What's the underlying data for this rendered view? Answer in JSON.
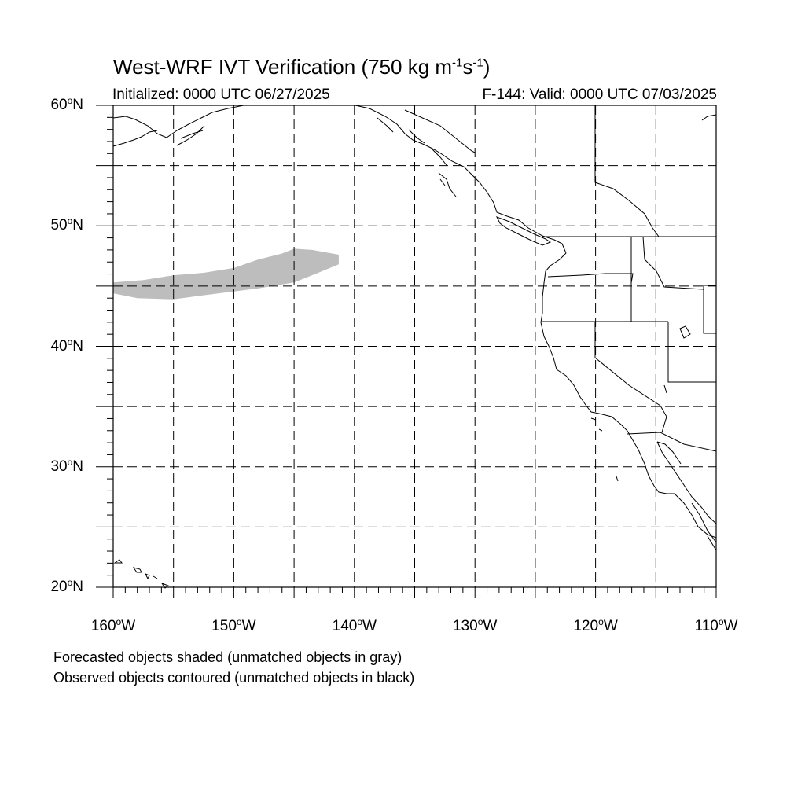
{
  "title": {
    "main": "West-WRF IVT Verification (750 kg m",
    "exp1": "-1",
    "mid": "s",
    "exp2": "-1",
    "end": ")"
  },
  "subtitle": {
    "initialized": "Initialized: 0000 UTC 06/27/2025",
    "valid": "F-144: Valid: 0000 UTC 07/03/2025"
  },
  "map": {
    "lon_range": [
      -160,
      -110
    ],
    "lat_range": [
      20,
      60
    ],
    "grid_lines": "dashed",
    "lat_labels": [
      {
        "value": 60,
        "text": "60",
        "hemi": "N"
      },
      {
        "value": 50,
        "text": "50",
        "hemi": "N"
      },
      {
        "value": 40,
        "text": "40",
        "hemi": "N"
      },
      {
        "value": 30,
        "text": "30",
        "hemi": "N"
      },
      {
        "value": 20,
        "text": "20",
        "hemi": "N"
      }
    ],
    "lon_labels": [
      {
        "value": -160,
        "text": "160",
        "hemi": "W"
      },
      {
        "value": -150,
        "text": "150",
        "hemi": "W"
      },
      {
        "value": -140,
        "text": "140",
        "hemi": "W"
      },
      {
        "value": -130,
        "text": "130",
        "hemi": "W"
      },
      {
        "value": -120,
        "text": "120",
        "hemi": "W"
      },
      {
        "value": -110,
        "text": "110",
        "hemi": "W"
      }
    ],
    "forecast_object": {
      "status": "unmatched",
      "color": "#bdbdbd",
      "outline": [
        [
          -160,
          45.3
        ],
        [
          -157.5,
          45.5
        ],
        [
          -155,
          45.9
        ],
        [
          -152.5,
          46.1
        ],
        [
          -150,
          46.5
        ],
        [
          -148,
          47.2
        ],
        [
          -146,
          47.7
        ],
        [
          -145,
          48.1
        ],
        [
          -143.5,
          48.0
        ],
        [
          -141.3,
          47.6
        ],
        [
          -141.3,
          46.8
        ],
        [
          -143,
          46.1
        ],
        [
          -145,
          45.3
        ],
        [
          -148,
          44.8
        ],
        [
          -152,
          44.3
        ],
        [
          -155,
          43.9
        ],
        [
          -158,
          44.0
        ],
        [
          -160,
          44.4
        ]
      ]
    }
  },
  "notes": {
    "line1": "Forecasted objects shaded (unmatched objects in gray)",
    "line2": "Observed objects contoured (unmatched objects in black)"
  }
}
